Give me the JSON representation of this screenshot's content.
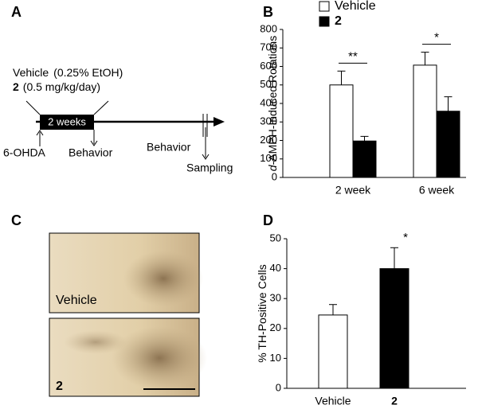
{
  "panel_labels": [
    "A",
    "B",
    "C",
    "D"
  ],
  "diagram": {
    "vehicle": "Vehicle",
    "vehicle_dose": "(0.25% EtOH)",
    "compound": "2",
    "compound_dose": "(0.5 mg/kg/day)",
    "period": "2 weeks",
    "lesion": "6-OHDA",
    "behavior_early": "Behavior",
    "behavior_late": "Behavior",
    "sampling": "Sampling"
  },
  "images": {
    "labels": [
      "Vehicle",
      "2"
    ]
  },
  "chart_data": [
    {
      "type": "bar",
      "ylabel_italic": "d",
      "ylabel": "-AMPH-Induced Rotations",
      "categories": [
        "2 week",
        "6 week"
      ],
      "series": [
        {
          "name": "Vehicle",
          "color": "#ffffff",
          "values": [
            500,
            607
          ],
          "errors": [
            75,
            70
          ]
        },
        {
          "name": "2",
          "color": "#000000",
          "values": [
            197,
            358
          ],
          "errors": [
            25,
            78
          ]
        }
      ],
      "annotations": [
        "**",
        "*"
      ],
      "ylim": [
        0,
        800
      ],
      "yticks": [
        0,
        100,
        200,
        300,
        400,
        500,
        600,
        700,
        800
      ],
      "legend": "top"
    },
    {
      "type": "bar",
      "ylabel": "% TH-Positive Cells",
      "categories": [
        "Vehicle",
        "2"
      ],
      "values": [
        24.5,
        40
      ],
      "errors": [
        3.5,
        7
      ],
      "colors": [
        "#ffffff",
        "#000000"
      ],
      "annotations": [
        null,
        "*"
      ],
      "ylim": [
        0,
        50
      ],
      "yticks": [
        0,
        10,
        20,
        30,
        40,
        50
      ]
    }
  ]
}
